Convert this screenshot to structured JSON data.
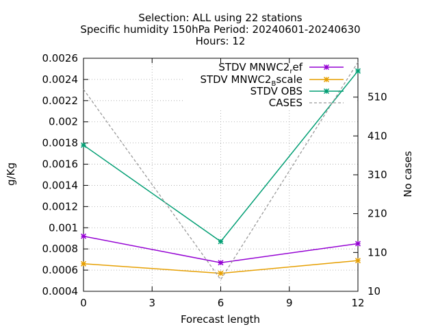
{
  "chart_data": {
    "type": "line",
    "title_lines": [
      "Selection: ALL using    22 stations",
      "Specific humidity 150hPa   Period: 20240601-20240630",
      "Hours: 12"
    ],
    "xlabel": "Forecast length",
    "ylabel": "g/Kg",
    "y2label": "No cases",
    "x": [
      0,
      6,
      12
    ],
    "xticks": [
      "0",
      "3",
      "6",
      "9",
      "12"
    ],
    "xlim": [
      0,
      12
    ],
    "ylim": [
      0.0004,
      0.0026
    ],
    "yticks": [
      "0.0004",
      "0.0006",
      "0.0008",
      "0.001",
      "0.0012",
      "0.0014",
      "0.0016",
      "0.0018",
      "0.002",
      "0.0022",
      "0.0024",
      "0.0026"
    ],
    "y2lim": [
      10,
      610
    ],
    "y2ticks": [
      "10",
      "110",
      "210",
      "310",
      "410",
      "510"
    ],
    "grid": true,
    "legend_position": "top-right",
    "series": [
      {
        "name_main": "STDV MNWC2",
        "name_sub": "r",
        "name_tail": "ef",
        "color": "#9400d3",
        "axis": "y",
        "style": "solid",
        "values": [
          0.00092,
          0.00067,
          0.00085
        ]
      },
      {
        "name_main": "STDV MNWC2",
        "name_sub": "B",
        "name_tail": "scale",
        "color": "#e69f00",
        "axis": "y",
        "style": "solid",
        "values": [
          0.00066,
          0.00057,
          0.00069
        ]
      },
      {
        "name_main": "STDV OBS",
        "name_sub": "",
        "name_tail": "",
        "color": "#009e73",
        "axis": "y",
        "style": "solid",
        "values": [
          0.00178,
          0.00087,
          0.00248
        ]
      },
      {
        "name_main": "CASES",
        "name_sub": "",
        "name_tail": "",
        "color": "#999999",
        "axis": "y2",
        "style": "dashed",
        "values": [
          530,
          40,
          600
        ]
      }
    ]
  }
}
